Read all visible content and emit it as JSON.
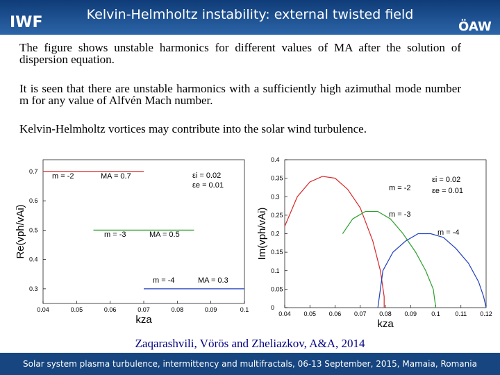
{
  "header": {
    "title": "Kelvin-Helmholtz instability: external twisted field",
    "logo_left": "IWF",
    "logo_right": "ÖAW"
  },
  "paragraphs": [
    "The figure shows unstable harmonics for different values of MA after the solution of dispersion equation.",
    "It is seen that there are unstable harmonics with a sufficiently high azimuthal mode number m for any value of Alfvén Mach number.",
    "Kelvin-Helmholtz vortices may contribute into the solar wind turbulence."
  ],
  "chart_data": [
    {
      "type": "line",
      "xlabel": "kza",
      "ylabel": "Re(vph/vAi)",
      "xlim": [
        0.04,
        0.1
      ],
      "xticks": [
        0.04,
        0.05,
        0.06,
        0.07,
        0.08,
        0.09,
        0.1
      ],
      "ylim": [
        0.25,
        0.74
      ],
      "yticks": [
        0.3,
        0.4,
        0.5,
        0.6,
        0.7
      ],
      "annotations": [
        "m = -2",
        "MA = 0.7",
        "m = -3",
        "MA = 0.5",
        "m = -4",
        "MA = 0.3",
        "εi = 0.02",
        "εe = 0.01"
      ],
      "series": [
        {
          "color": "#d62728",
          "x": [
            0.04,
            0.07
          ],
          "values": [
            0.7,
            0.7
          ]
        },
        {
          "color": "#2ca02c",
          "x": [
            0.055,
            0.085
          ],
          "values": [
            0.5,
            0.5
          ]
        },
        {
          "color": "#1f3fbf",
          "x": [
            0.07,
            0.1
          ],
          "values": [
            0.3,
            0.3
          ]
        }
      ]
    },
    {
      "type": "line",
      "xlabel": "kza",
      "ylabel": "Im(vph/vAi)",
      "xlim": [
        0.04,
        0.12
      ],
      "xticks": [
        0.04,
        0.05,
        0.06,
        0.07,
        0.08,
        0.09,
        0.1,
        0.11,
        0.12
      ],
      "ylim": [
        0,
        0.4
      ],
      "yticks": [
        0,
        0.05,
        0.1,
        0.15,
        0.2,
        0.25,
        0.3,
        0.35,
        0.4
      ],
      "annotations": [
        "m = -2",
        "m = -3",
        "m = -4",
        "εi = 0.02",
        "εe = 0.01"
      ],
      "series": [
        {
          "color": "#d62728",
          "x": [
            0.04,
            0.045,
            0.05,
            0.055,
            0.06,
            0.065,
            0.07,
            0.075,
            0.078,
            0.0795,
            0.0795
          ],
          "values": [
            0.22,
            0.3,
            0.34,
            0.355,
            0.35,
            0.32,
            0.27,
            0.18,
            0.1,
            0.03,
            0
          ]
        },
        {
          "color": "#2ca02c",
          "x": [
            0.063,
            0.067,
            0.072,
            0.077,
            0.082,
            0.087,
            0.092,
            0.096,
            0.099,
            0.1
          ],
          "values": [
            0.2,
            0.24,
            0.26,
            0.26,
            0.24,
            0.2,
            0.15,
            0.1,
            0.05,
            0
          ]
        },
        {
          "color": "#1f3fbf",
          "x": [
            0.077,
            0.079,
            0.083,
            0.088,
            0.093,
            0.098,
            0.103,
            0.108,
            0.113,
            0.117,
            0.119,
            0.12
          ],
          "values": [
            0,
            0.1,
            0.15,
            0.18,
            0.2,
            0.2,
            0.19,
            0.16,
            0.12,
            0.07,
            0.03,
            0
          ]
        }
      ]
    }
  ],
  "citation": "Zaqarashvili, Vörös and Zheliazkov, A&A, 2014",
  "footer": "Solar system plasma turbulence, intermittency and multifractals, 06-13 September, 2015, Mamaia, Romania"
}
